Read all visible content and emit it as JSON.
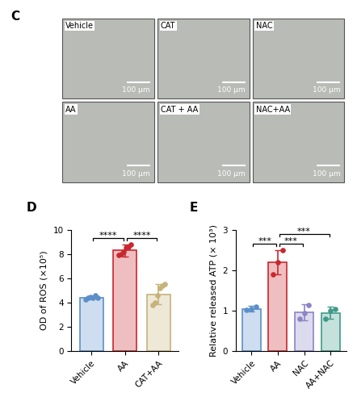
{
  "image_panel": {
    "label": "C",
    "rows": 2,
    "columns": 3,
    "tiles": [
      {
        "label": "Vehicle",
        "scale_bar": "100 μm"
      },
      {
        "label": "CAT",
        "scale_bar": "100 μm"
      },
      {
        "label": "NAC",
        "scale_bar": "100 μm"
      },
      {
        "label": "AA",
        "scale_bar": "100 μm"
      },
      {
        "label": "CAT + AA",
        "scale_bar": "100 μm"
      },
      {
        "label": "NAC+AA",
        "scale_bar": "100 μm"
      }
    ]
  },
  "chart_data": [
    {
      "type": "bar",
      "title": "D",
      "y_label": "OD of ROS (×10⁵)",
      "categories": [
        "Vehicle",
        "AA",
        "CAT+AA"
      ],
      "values": [
        4.4,
        8.3,
        4.7
      ],
      "errors": [
        0.15,
        0.5,
        0.8
      ],
      "points": [
        [
          4.3,
          4.4,
          4.5,
          4.4,
          4.6,
          4.4
        ],
        [
          7.9,
          8.0,
          8.2,
          8.5,
          8.6,
          8.8
        ],
        [
          3.8,
          4.0,
          4.6,
          5.2,
          5.4,
          5.5
        ]
      ],
      "colors": [
        "#5b8fc9",
        "#c8272e",
        "#c7b27a"
      ],
      "ylim": [
        0,
        10
      ],
      "yticks": [
        0,
        2,
        4,
        6,
        8,
        10
      ],
      "annotations": [
        {
          "between": [
            "Vehicle",
            "AA"
          ],
          "text": "****"
        },
        {
          "between": [
            "AA",
            "CAT+AA"
          ],
          "text": "****"
        }
      ]
    },
    {
      "type": "bar",
      "title": "E",
      "y_label": "Relative released ATP (× 10³)",
      "categories": [
        "Vehicle",
        "AA",
        "NAC",
        "AA+NAC"
      ],
      "values": [
        1.05,
        2.2,
        0.97,
        0.95
      ],
      "errors": [
        0.07,
        0.3,
        0.2,
        0.15
      ],
      "points": [
        [
          1.02,
          1.05,
          1.1
        ],
        [
          1.9,
          2.2,
          2.5
        ],
        [
          0.8,
          0.95,
          1.15
        ],
        [
          0.8,
          1.0,
          1.05
        ]
      ],
      "colors": [
        "#5b8fc9",
        "#c8272e",
        "#8c84c4",
        "#3f9a8a"
      ],
      "ylim": [
        0,
        3
      ],
      "yticks": [
        0,
        1,
        2,
        3
      ],
      "annotations": [
        {
          "between": [
            "Vehicle",
            "AA"
          ],
          "text": "***"
        },
        {
          "between": [
            "AA",
            "NAC"
          ],
          "text": "***"
        },
        {
          "between": [
            "AA",
            "AA+NAC"
          ],
          "text": "***"
        }
      ]
    }
  ]
}
